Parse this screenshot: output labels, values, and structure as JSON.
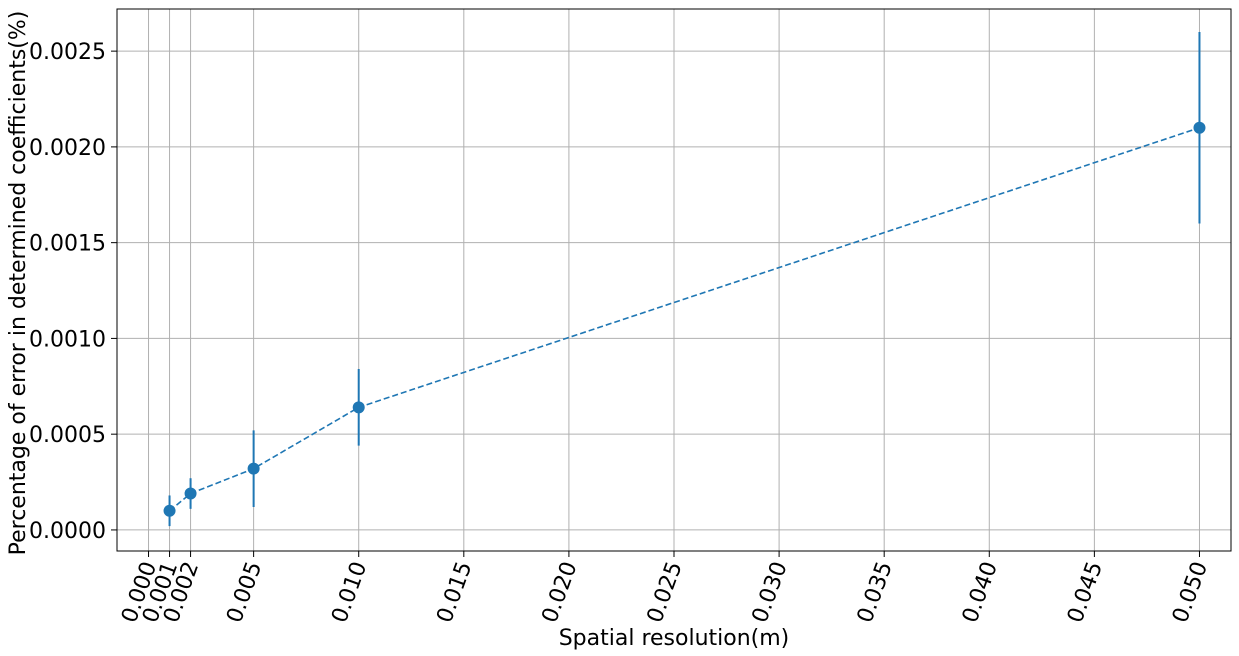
{
  "chart_data": {
    "type": "line",
    "title": "",
    "xlabel": "Spatial resolution(m)",
    "ylabel": "Percentage of error in determined coefficients(%)",
    "x_ticks": [
      0.0,
      0.001,
      0.002,
      0.005,
      0.01,
      0.015,
      0.02,
      0.025,
      0.03,
      0.035,
      0.04,
      0.045,
      0.05
    ],
    "x_tick_labels": [
      "0.000",
      "0.001",
      "0.002",
      "0.005",
      "0.010",
      "0.015",
      "0.020",
      "0.025",
      "0.030",
      "0.035",
      "0.040",
      "0.045",
      "0.050"
    ],
    "y_ticks": [
      0.0,
      0.0005,
      0.001,
      0.0015,
      0.002,
      0.0025
    ],
    "y_tick_labels": [
      "0.0000",
      "0.0005",
      "0.0010",
      "0.0015",
      "0.0020",
      "0.0025"
    ],
    "xlim": [
      -0.0015,
      0.0515
    ],
    "ylim": [
      -0.00011,
      0.00272
    ],
    "grid": true,
    "color": "#1f77b4",
    "line_style": "dashed",
    "series": [
      {
        "x": [
          0.001,
          0.002,
          0.005,
          0.01,
          0.05
        ],
        "y": [
          0.0001,
          0.00019,
          0.00032,
          0.00064,
          0.0021
        ],
        "yerr": [
          8e-05,
          8e-05,
          0.0002,
          0.0002,
          0.0005
        ]
      }
    ]
  }
}
